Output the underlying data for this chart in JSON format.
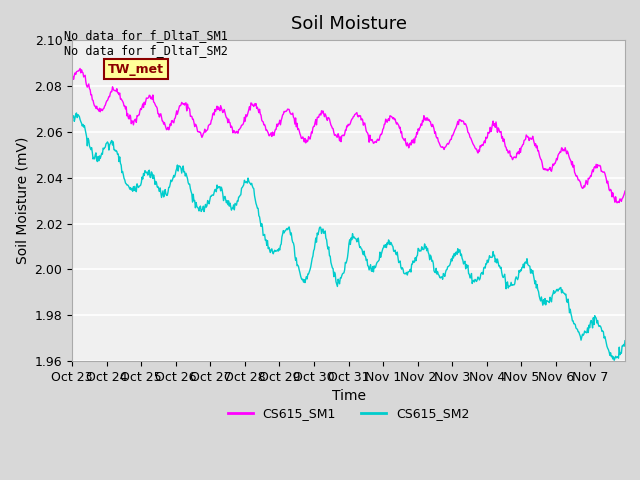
{
  "title": "Soil Moisture",
  "xlabel": "Time",
  "ylabel": "Soil Moisture (mV)",
  "ylim": [
    1.96,
    2.1
  ],
  "yticks": [
    1.96,
    1.98,
    2.0,
    2.02,
    2.04,
    2.06,
    2.08,
    2.1
  ],
  "xtick_labels": [
    "Oct 23",
    "Oct 24",
    "Oct 25",
    "Oct 26",
    "Oct 27",
    "Oct 28",
    "Oct 29",
    "Oct 30",
    "Oct 31",
    "Nov 1",
    "Nov 2",
    "Nov 3",
    "Nov 4",
    "Nov 5",
    "Nov 6",
    "Nov 7"
  ],
  "annotation_text": "No data for f_DltaT_SM1\nNo data for f_DltaT_SM2",
  "tw_met_label": "TW_met",
  "tw_met_bg": "#ffff99",
  "tw_met_border": "#8b0000",
  "tw_met_text_color": "#8b0000",
  "legend_labels": [
    "CS615_SM1",
    "CS615_SM2"
  ],
  "color_SM1": "#ff00ff",
  "color_SM2": "#00cccc",
  "plot_bg_color": "#f0f0f0",
  "title_fontsize": 13,
  "axis_fontsize": 10,
  "tick_fontsize": 9
}
